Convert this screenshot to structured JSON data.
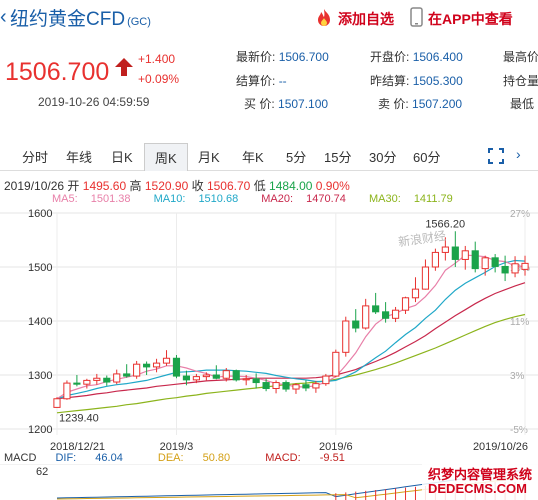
{
  "header": {
    "title": "纽约黄金CFD",
    "code": "(GC)",
    "add_fav": "添加自选",
    "app_view": "在APP中查看"
  },
  "quote": {
    "price": "1506.700",
    "change": "+1.400",
    "change_pct": "+0.09%",
    "timestamp": "2019-10-26 04:59:59",
    "fields": [
      {
        "label": "最新价:",
        "value": "1506.700"
      },
      {
        "label": "开盘价:",
        "value": "1506.400"
      },
      {
        "label": "最高价",
        "value": ""
      },
      {
        "label": "结算价:",
        "value": "--"
      },
      {
        "label": "昨结算:",
        "value": "1505.300"
      },
      {
        "label": "持仓量",
        "value": ""
      },
      {
        "label": "买  价:",
        "value": "1507.100"
      },
      {
        "label": "卖  价:",
        "value": "1507.200"
      },
      {
        "label": "最低",
        "value": ""
      }
    ]
  },
  "tabs": [
    "分时",
    "年线",
    "日K",
    "周K",
    "月K",
    "年K",
    "5分",
    "15分",
    "30分",
    "60分"
  ],
  "active_tab": "周K",
  "ohlc": {
    "date": "2019/10/26",
    "open_label": "开",
    "open": "1495.60",
    "high_label": "高",
    "high": "1520.90",
    "close_label": "收",
    "close": "1506.70",
    "low_label": "低",
    "low": "1484.00",
    "pct": "0.90%"
  },
  "ma": [
    {
      "label": "MA5:",
      "value": "1501.38",
      "color": "#e87fa8"
    },
    {
      "label": "MA10:",
      "value": "1510.68",
      "color": "#20a8c8"
    },
    {
      "label": "MA20:",
      "value": "1470.74",
      "color": "#c8284c"
    },
    {
      "label": "MA30:",
      "value": "1411.79",
      "color": "#8cb41c"
    }
  ],
  "macd": {
    "label": "MACD",
    "dif_label": "DIF:",
    "dif": "46.04",
    "dea_label": "DEA:",
    "dea": "50.80",
    "macd_label": "MACD:",
    "macd": "-9.51",
    "axis_top": "62"
  },
  "watermark": "新浪财经",
  "corner_logo": {
    "line1": "织梦内容管理系统",
    "line2": "DEDECMS.COM"
  },
  "colors": {
    "up": "#e8312f",
    "down": "#1aa34a",
    "accent": "#1a5fa8"
  },
  "chart_data": {
    "type": "candlestick",
    "y_axis_left": [
      "1600",
      "1500",
      "1400",
      "1300",
      "1200"
    ],
    "y_axis_right": [
      "27%",
      "19%",
      "11%",
      "3%",
      "-5%"
    ],
    "x_ticks": [
      "2018/12/21",
      "2019/3",
      "2019/6",
      "2019/10/26"
    ],
    "ylim": [
      1200,
      1600
    ],
    "annotations": [
      {
        "text": "1566.20"
      },
      {
        "text": "1239.40"
      }
    ],
    "candles": [
      [
        1240,
        1259,
        1239.4,
        1256
      ],
      [
        1256,
        1290,
        1254,
        1285
      ],
      [
        1285,
        1300,
        1279,
        1283
      ],
      [
        1283,
        1293,
        1275,
        1290
      ],
      [
        1290,
        1302,
        1282,
        1294
      ],
      [
        1294,
        1299,
        1280,
        1287
      ],
      [
        1287,
        1310,
        1283,
        1302
      ],
      [
        1302,
        1320,
        1295,
        1298
      ],
      [
        1298,
        1326,
        1293,
        1320
      ],
      [
        1320,
        1325,
        1300,
        1315
      ],
      [
        1315,
        1330,
        1305,
        1322
      ],
      [
        1322,
        1346,
        1317,
        1331
      ],
      [
        1331,
        1337,
        1294,
        1298
      ],
      [
        1298,
        1308,
        1281,
        1291
      ],
      [
        1291,
        1302,
        1285,
        1297
      ],
      [
        1297,
        1305,
        1290,
        1300
      ],
      [
        1300,
        1318,
        1292,
        1294
      ],
      [
        1294,
        1313,
        1288,
        1308
      ],
      [
        1308,
        1310,
        1288,
        1291
      ],
      [
        1291,
        1300,
        1281,
        1293
      ],
      [
        1293,
        1303,
        1275,
        1286
      ],
      [
        1286,
        1293,
        1270,
        1275
      ],
      [
        1275,
        1290,
        1266,
        1286
      ],
      [
        1286,
        1290,
        1269,
        1274
      ],
      [
        1274,
        1285,
        1265,
        1282
      ],
      [
        1282,
        1290,
        1270,
        1276
      ],
      [
        1276,
        1289,
        1267,
        1284
      ],
      [
        1284,
        1302,
        1280,
        1298
      ],
      [
        1298,
        1347,
        1296,
        1342
      ],
      [
        1342,
        1408,
        1334,
        1400
      ],
      [
        1400,
        1422,
        1379,
        1387
      ],
      [
        1387,
        1441,
        1384,
        1428
      ],
      [
        1428,
        1452,
        1413,
        1417
      ],
      [
        1417,
        1435,
        1397,
        1405
      ],
      [
        1405,
        1426,
        1398,
        1420
      ],
      [
        1420,
        1445,
        1413,
        1443
      ],
      [
        1443,
        1481,
        1435,
        1459
      ],
      [
        1459,
        1514,
        1458,
        1500
      ],
      [
        1500,
        1534,
        1493,
        1527
      ],
      [
        1527,
        1555,
        1512,
        1537
      ],
      [
        1537,
        1566.2,
        1500,
        1514
      ],
      [
        1514,
        1539,
        1495,
        1530
      ],
      [
        1530,
        1547,
        1490,
        1497
      ],
      [
        1497,
        1521,
        1484,
        1517
      ],
      [
        1517,
        1524,
        1490,
        1501
      ],
      [
        1501,
        1521,
        1474,
        1489
      ],
      [
        1489,
        1520,
        1481,
        1506
      ],
      [
        1495.6,
        1520.9,
        1484,
        1506.7
      ]
    ],
    "ma_series": [
      {
        "name": "MA5",
        "values": [
          1256,
          1268,
          1274,
          1280,
          1282,
          1288,
          1292,
          1296,
          1300,
          1307,
          1311,
          1317,
          1317,
          1313,
          1307,
          1303,
          1296,
          1298,
          1298,
          1297,
          1294,
          1290,
          1284,
          1282,
          1278,
          1278,
          1280,
          1287,
          1297,
          1318,
          1341,
          1371,
          1394,
          1408,
          1414,
          1423,
          1429,
          1445,
          1466,
          1494,
          1507,
          1522,
          1521,
          1519,
          1512,
          1510,
          1502,
          1501
        ]
      },
      {
        "name": "MA10",
        "values": [
          1256,
          1262,
          1266,
          1270,
          1275,
          1279,
          1282,
          1284,
          1287,
          1290,
          1295,
          1300,
          1305,
          1306,
          1307,
          1309,
          1309,
          1309,
          1308,
          1307,
          1305,
          1303,
          1299,
          1296,
          1293,
          1291,
          1288,
          1288,
          1290,
          1297,
          1306,
          1319,
          1332,
          1344,
          1360,
          1375,
          1388,
          1405,
          1420,
          1440,
          1457,
          1470,
          1480,
          1490,
          1501,
          1508,
          1512,
          1511
        ]
      },
      {
        "name": "MA20",
        "values": [
          1256,
          1258,
          1260,
          1262,
          1265,
          1267,
          1270,
          1272,
          1274,
          1276,
          1279,
          1281,
          1283,
          1285,
          1287,
          1289,
          1290,
          1291,
          1292,
          1293,
          1294,
          1294,
          1294,
          1294,
          1294,
          1294,
          1295,
          1297,
          1300,
          1305,
          1310,
          1318,
          1325,
          1333,
          1342,
          1352,
          1362,
          1373,
          1386,
          1398,
          1410,
          1421,
          1432,
          1442,
          1451,
          1458,
          1465,
          1471
        ]
      },
      {
        "name": "MA30",
        "values": [
          1230,
          1232,
          1234,
          1236,
          1238,
          1240,
          1242,
          1245,
          1247,
          1250,
          1253,
          1256,
          1258,
          1261,
          1263,
          1266,
          1268,
          1270,
          1272,
          1274,
          1276,
          1278,
          1280,
          1282,
          1284,
          1285,
          1287,
          1289,
          1292,
          1296,
          1300,
          1305,
          1310,
          1316,
          1322,
          1329,
          1336,
          1343,
          1350,
          1358,
          1366,
          1374,
          1382,
          1390,
          1397,
          1403,
          1408,
          1412
        ]
      }
    ]
  }
}
